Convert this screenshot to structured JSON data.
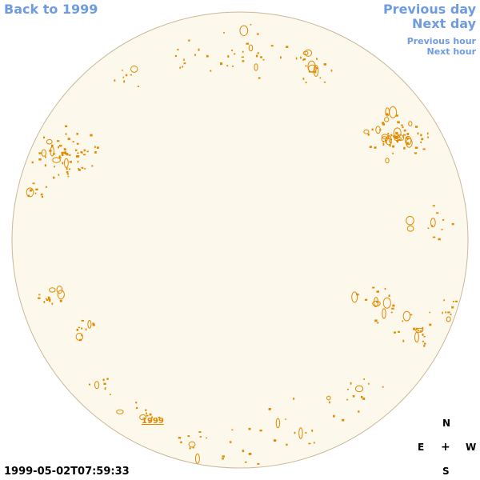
{
  "nav": {
    "back": "Back to 1999",
    "previous_day": "Previous day",
    "next_day": "Next day",
    "previous_hour": "Previous hour",
    "next_hour": "Next hour"
  },
  "timestamp": "1999-05-02T07:59:33",
  "year_label": "1999",
  "compass": {
    "north": "N",
    "south": "S",
    "east": "E",
    "west": "W",
    "center": "+"
  },
  "colors": {
    "disk_fill": "#fdf8ec",
    "disk_stroke": "#c8b89a",
    "contour": "#e08a00",
    "link": "#6f9be0"
  }
}
